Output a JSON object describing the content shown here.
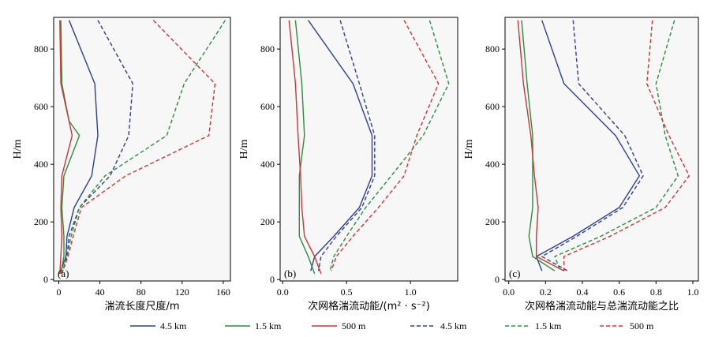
{
  "chart_data": {
    "type": "line",
    "ylabel": "H/m",
    "legend": {
      "placement": "bottom",
      "entries": [
        {
          "label": "4.5 km",
          "color": "#2e3f8f",
          "dash": false
        },
        {
          "label": "1.5 km",
          "color": "#2e8b3e",
          "dash": false
        },
        {
          "label": "500 m",
          "color": "#c83737",
          "dash": false
        },
        {
          "label": "4.5 km",
          "color": "#2e3f8f",
          "dash": true
        },
        {
          "label": "1.5 km",
          "color": "#2e8b3e",
          "dash": true
        },
        {
          "label": "500 m",
          "color": "#c83737",
          "dash": true
        }
      ]
    },
    "panels": [
      {
        "label": "(a)",
        "xlabel": "湍流长度尺度/m",
        "xlim": [
          -5,
          167
        ],
        "ylim": [
          -5,
          910
        ],
        "xticks": [
          0,
          40,
          80,
          120,
          160
        ],
        "xtick_labels": [
          "0",
          "40",
          "80",
          "120",
          "160"
        ],
        "yticks": [
          0,
          200,
          400,
          600,
          800
        ],
        "series": [
          {
            "name": "4.5 km",
            "color": "#2e3f8f",
            "dash": false,
            "x": [
              10,
              35,
              38,
              32,
              15,
              8,
              7,
              3,
              1
            ],
            "y": [
              900,
              680,
              500,
              360,
              250,
              150,
              80,
              40,
              20
            ]
          },
          {
            "name": "1.5 km",
            "color": "#2e8b3e",
            "dash": false,
            "x": [
              2,
              3,
              10,
              20,
              5,
              3,
              5,
              5,
              2
            ],
            "y": [
              900,
              680,
              550,
              500,
              360,
              250,
              150,
              80,
              20
            ]
          },
          {
            "name": "500 m",
            "color": "#c83737",
            "dash": false,
            "x": [
              1,
              2,
              10,
              13,
              3,
              2,
              3,
              2,
              1
            ],
            "y": [
              900,
              680,
              550,
              500,
              360,
              250,
              150,
              80,
              20
            ]
          },
          {
            "name": "4.5 km",
            "color": "#2e3f8f",
            "dash": true,
            "x": [
              38,
              72,
              68,
              50,
              20,
              10,
              8,
              3
            ],
            "y": [
              900,
              680,
              500,
              360,
              250,
              150,
              80,
              20
            ]
          },
          {
            "name": "1.5 km",
            "color": "#2e8b3e",
            "dash": true,
            "x": [
              162,
              122,
              105,
              45,
              20,
              12,
              8,
              3
            ],
            "y": [
              900,
              680,
              500,
              360,
              250,
              150,
              80,
              20
            ]
          },
          {
            "name": "500 m",
            "color": "#c83737",
            "dash": true,
            "x": [
              92,
              152,
              146,
              65,
              22,
              14,
              9,
              3
            ],
            "y": [
              900,
              680,
              500,
              360,
              250,
              150,
              80,
              20
            ]
          }
        ]
      },
      {
        "label": "(b)",
        "xlabel": "次网格湍流动能/(m² · s⁻²)",
        "xlim": [
          -0.02,
          1.37
        ],
        "ylim": [
          -5,
          910
        ],
        "xticks": [
          0,
          0.5,
          1.0
        ],
        "xtick_labels": [
          "0.0",
          "0.5",
          "1.0"
        ],
        "yticks": [
          0,
          200,
          400,
          600,
          800
        ],
        "series": [
          {
            "name": "4.5 km",
            "color": "#2e3f8f",
            "dash": false,
            "x": [
              0.2,
              0.55,
              0.7,
              0.7,
              0.6,
              0.4,
              0.25,
              0.22
            ],
            "y": [
              900,
              680,
              500,
              360,
              250,
              150,
              80,
              30
            ]
          },
          {
            "name": "1.5 km",
            "color": "#2e8b3e",
            "dash": false,
            "x": [
              0.1,
              0.15,
              0.17,
              0.13,
              0.13,
              0.13,
              0.2,
              0.25
            ],
            "y": [
              900,
              680,
              500,
              360,
              250,
              150,
              80,
              20
            ]
          },
          {
            "name": "500 m",
            "color": "#c83737",
            "dash": false,
            "x": [
              0.05,
              0.1,
              0.12,
              0.14,
              0.15,
              0.17,
              0.25,
              0.3
            ],
            "y": [
              900,
              680,
              500,
              360,
              250,
              150,
              80,
              20
            ]
          },
          {
            "name": "4.5 km",
            "color": "#2e3f8f",
            "dash": true,
            "x": [
              0.45,
              0.6,
              0.72,
              0.72,
              0.62,
              0.42,
              0.3,
              0.28
            ],
            "y": [
              900,
              680,
              500,
              360,
              250,
              150,
              80,
              30
            ]
          },
          {
            "name": "1.5 km",
            "color": "#2e8b3e",
            "dash": true,
            "x": [
              1.15,
              1.3,
              1.1,
              0.85,
              0.65,
              0.5,
              0.4,
              0.37
            ],
            "y": [
              900,
              680,
              500,
              360,
              250,
              150,
              80,
              30
            ]
          },
          {
            "name": "500 m",
            "color": "#c83737",
            "dash": true,
            "x": [
              0.95,
              1.22,
              1.05,
              0.95,
              0.75,
              0.55,
              0.42,
              0.38
            ],
            "y": [
              900,
              680,
              500,
              360,
              250,
              150,
              80,
              30
            ]
          }
        ]
      },
      {
        "label": "(c)",
        "xlabel": "次网格湍流动能与总湍流动能之比",
        "xlim": [
          -0.02,
          1.03
        ],
        "ylim": [
          -5,
          910
        ],
        "xticks": [
          0,
          0.2,
          0.4,
          0.6,
          0.8,
          1.0
        ],
        "xtick_labels": [
          "0.0",
          "0.2",
          "0.4",
          "0.6",
          "0.8",
          "1.0"
        ],
        "yticks": [
          0,
          200,
          400,
          600,
          800
        ],
        "series": [
          {
            "name": "4.5 km",
            "color": "#2e3f8f",
            "dash": false,
            "x": [
              0.18,
              0.3,
              0.58,
              0.71,
              0.6,
              0.35,
              0.15,
              0.18
            ],
            "y": [
              900,
              680,
              500,
              360,
              250,
              150,
              80,
              30
            ]
          },
          {
            "name": "1.5 km",
            "color": "#2e8b3e",
            "dash": false,
            "x": [
              0.07,
              0.1,
              0.13,
              0.13,
              0.13,
              0.11,
              0.13,
              0.25
            ],
            "y": [
              900,
              680,
              500,
              360,
              250,
              150,
              80,
              30
            ]
          },
          {
            "name": "500 m",
            "color": "#c83737",
            "dash": false,
            "x": [
              0.05,
              0.08,
              0.12,
              0.14,
              0.16,
              0.15,
              0.15,
              0.3
            ],
            "y": [
              900,
              680,
              500,
              360,
              250,
              150,
              80,
              30
            ]
          },
          {
            "name": "4.5 km",
            "color": "#2e3f8f",
            "dash": true,
            "x": [
              0.35,
              0.38,
              0.63,
              0.73,
              0.62,
              0.37,
              0.18,
              0.32
            ],
            "y": [
              900,
              680,
              500,
              360,
              250,
              150,
              80,
              30
            ]
          },
          {
            "name": "1.5 km",
            "color": "#2e8b3e",
            "dash": true,
            "x": [
              0.9,
              0.8,
              0.85,
              0.92,
              0.8,
              0.5,
              0.25,
              0.28
            ],
            "y": [
              900,
              680,
              500,
              360,
              250,
              150,
              80,
              30
            ]
          },
          {
            "name": "500 m",
            "color": "#c83737",
            "dash": true,
            "x": [
              0.78,
              0.75,
              0.87,
              0.98,
              0.85,
              0.55,
              0.3,
              0.3
            ],
            "y": [
              900,
              680,
              500,
              360,
              250,
              150,
              80,
              30
            ]
          }
        ]
      }
    ]
  }
}
